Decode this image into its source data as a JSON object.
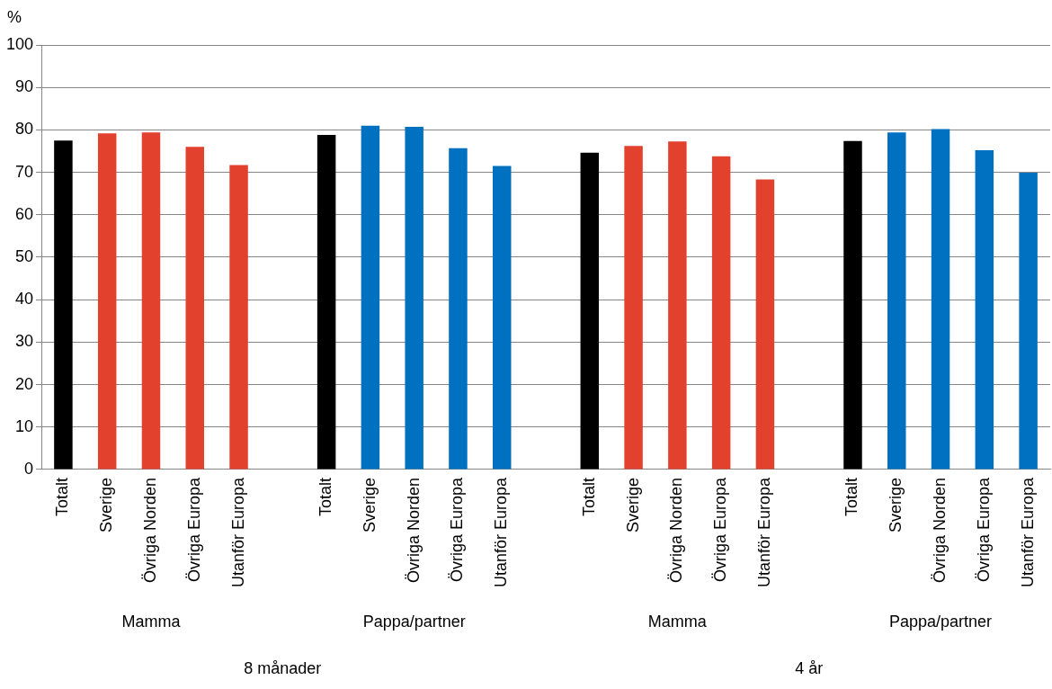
{
  "chart_data": {
    "type": "bar",
    "ylabel": "%",
    "categories": [
      "Totalt",
      "Sverige",
      "Övriga Norden",
      "Övriga Europa",
      "Utanför Europa",
      null,
      "Totalt",
      "Sverige",
      "Övriga Norden",
      "Övriga Europa",
      "Utanför Europa",
      null,
      "Totalt",
      "Sverige",
      "Övriga Norden",
      "Övriga Europa",
      "Utanför Europa",
      null,
      "Totalt",
      "Sverige",
      "Övriga Norden",
      "Övriga Europa",
      "Utanför Europa"
    ],
    "values": [
      77.5,
      79.2,
      79.4,
      76.0,
      71.7,
      null,
      78.8,
      81.0,
      80.7,
      75.7,
      71.5,
      null,
      74.6,
      76.2,
      77.3,
      73.8,
      68.3,
      null,
      77.4,
      79.4,
      80.2,
      75.2,
      69.9
    ],
    "colors": [
      "#000000",
      "#e2412d",
      "#e2412d",
      "#e2412d",
      "#e2412d",
      null,
      "#000000",
      "#0070c0",
      "#0070c0",
      "#0070c0",
      "#0070c0",
      null,
      "#000000",
      "#e2412d",
      "#e2412d",
      "#e2412d",
      "#e2412d",
      null,
      "#000000",
      "#0070c0",
      "#0070c0",
      "#0070c0",
      "#0070c0"
    ],
    "ylim": [
      0,
      100
    ],
    "yticks": [
      0,
      10,
      20,
      30,
      40,
      50,
      60,
      70,
      80,
      90,
      100
    ],
    "grid": "y",
    "legend": false,
    "annotations": [
      "Mamma",
      "Pappa/partner",
      "Mamma",
      "Pappa/partner",
      "8 månader",
      "4 år"
    ]
  }
}
